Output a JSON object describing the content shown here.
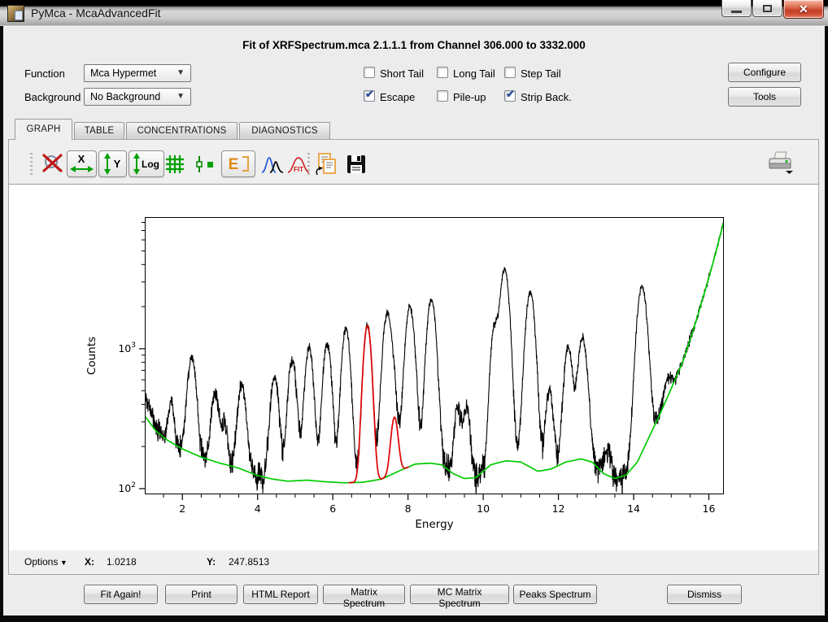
{
  "window": {
    "title": "PyMca - McaAdvancedFit",
    "controls": {
      "minimize": "minimize",
      "maximize": "maximize",
      "close": "close"
    }
  },
  "header": {
    "title": "Fit of XRFSpectrum.mca 2.1.1.1 from Channel 306.000 to 3332.000"
  },
  "controls": {
    "function_label": "Function",
    "function_value": "Mca Hypermet",
    "background_label": "Background",
    "background_value": "No Background",
    "checkboxes": [
      {
        "label": "Short Tail",
        "checked": false
      },
      {
        "label": "Long Tail",
        "checked": false
      },
      {
        "label": "Step Tail",
        "checked": false
      },
      {
        "label": "Escape",
        "checked": true
      },
      {
        "label": "Pile-up",
        "checked": false
      },
      {
        "label": "Strip Back.",
        "checked": true
      }
    ],
    "configure_label": "Configure",
    "tools_label": "Tools"
  },
  "tabs": [
    {
      "label": "GRAPH",
      "active": true
    },
    {
      "label": "TABLE",
      "active": false
    },
    {
      "label": "CONCENTRATIONS",
      "active": false
    },
    {
      "label": "DIAGNOSTICS",
      "active": false
    }
  ],
  "toolbar": {
    "icons": [
      "zoom-reset",
      "x-autoscale",
      "y-autoscale",
      "log-toggle",
      "grid",
      "fit-markers",
      "energy",
      "peaks",
      "fit",
      "copy",
      "save",
      "print"
    ],
    "x_label": "X",
    "y_label": "Y",
    "log_label": "Log",
    "energy_label": "E",
    "fit_label": "FIT"
  },
  "statusbar": {
    "options_label": "Options",
    "x_label": "X:",
    "x_value": "1.0218",
    "y_label": "Y:",
    "y_value": "247.8513"
  },
  "footer": {
    "buttons": [
      "Fit Again!",
      "Print",
      "HTML Report",
      "Matrix Spectrum",
      "MC Matrix Spectrum",
      "Peaks Spectrum",
      "Dismiss"
    ]
  },
  "colors": {
    "data_line": "#000000",
    "continuum_line": "#00cc00",
    "fit_peak_line": "#dd0000",
    "toolbar_green": "#00a000",
    "toolbar_orange": "#e08914",
    "close_button_red": "#c13d27"
  },
  "chart_data": {
    "type": "line",
    "title": "",
    "xlabel": "Energy",
    "ylabel": "Counts",
    "x_range": [
      1.0,
      16.4
    ],
    "y_range_log": [
      91,
      8730
    ],
    "x_ticks": [
      2,
      4,
      6,
      8,
      10,
      12,
      14,
      16
    ],
    "y_ticks": [
      100,
      1000
    ],
    "grid": false,
    "legend": "none",
    "series": [
      {
        "name": "spectrum data",
        "color": "#000000"
      },
      {
        "name": "strip background / continuum",
        "color": "#00cc00"
      },
      {
        "name": "selected fitted peaks",
        "color": "#dd0000"
      }
    ],
    "baseline_points": [
      [
        1.0,
        330
      ],
      [
        1.3,
        258
      ],
      [
        1.6,
        222
      ],
      [
        2.0,
        192
      ],
      [
        2.5,
        168
      ],
      [
        3.0,
        152
      ],
      [
        3.5,
        140
      ],
      [
        4.0,
        124
      ],
      [
        4.4,
        117
      ],
      [
        4.8,
        113
      ],
      [
        5.3,
        115
      ],
      [
        5.8,
        112
      ],
      [
        6.3,
        110
      ],
      [
        6.8,
        111
      ],
      [
        7.3,
        117
      ],
      [
        7.8,
        135
      ],
      [
        8.2,
        150
      ],
      [
        8.6,
        152
      ],
      [
        8.9,
        148
      ],
      [
        9.2,
        128
      ],
      [
        9.5,
        118
      ],
      [
        9.8,
        120
      ],
      [
        10.2,
        148
      ],
      [
        10.6,
        158
      ],
      [
        11.0,
        155
      ],
      [
        11.45,
        133
      ],
      [
        11.8,
        138
      ],
      [
        12.2,
        155
      ],
      [
        12.6,
        163
      ],
      [
        12.9,
        155
      ],
      [
        13.2,
        128
      ],
      [
        13.5,
        118
      ],
      [
        13.8,
        125
      ],
      [
        14.1,
        155
      ],
      [
        14.4,
        230
      ],
      [
        14.7,
        340
      ],
      [
        15.0,
        520
      ],
      [
        15.3,
        800
      ],
      [
        15.6,
        1400
      ],
      [
        15.9,
        2600
      ],
      [
        16.15,
        4500
      ],
      [
        16.4,
        8200
      ]
    ],
    "peaks": [
      [
        0.88,
        140,
        0.22
      ],
      [
        1.7,
        205,
        0.07
      ],
      [
        2.25,
        700,
        0.1
      ],
      [
        2.87,
        330,
        0.09
      ],
      [
        3.12,
        150,
        0.07
      ],
      [
        3.58,
        410,
        0.1
      ],
      [
        4.45,
        520,
        0.1
      ],
      [
        4.92,
        720,
        0.1
      ],
      [
        5.37,
        900,
        0.1
      ],
      [
        5.85,
        980,
        0.1
      ],
      [
        6.35,
        1290,
        0.1
      ],
      [
        6.92,
        1350,
        0.095
      ],
      [
        7.45,
        1650,
        0.11
      ],
      [
        7.64,
        195,
        0.085
      ],
      [
        8.05,
        1850,
        0.11
      ],
      [
        8.62,
        2080,
        0.11
      ],
      [
        9.32,
        260,
        0.08
      ],
      [
        9.56,
        270,
        0.08
      ],
      [
        10.29,
        1200,
        0.09
      ],
      [
        10.57,
        3530,
        0.11
      ],
      [
        11.25,
        2400,
        0.11
      ],
      [
        11.76,
        360,
        0.09
      ],
      [
        12.26,
        870,
        0.1
      ],
      [
        12.64,
        1030,
        0.11
      ],
      [
        13.3,
        60,
        0.1
      ],
      [
        14.22,
        2600,
        0.12
      ],
      [
        14.9,
        160,
        0.1
      ]
    ],
    "fit_peaks": [
      [
        6.92,
        1350,
        0.095
      ],
      [
        7.64,
        195,
        0.085
      ]
    ],
    "fit_range": [
      6.42,
      8.02
    ]
  }
}
